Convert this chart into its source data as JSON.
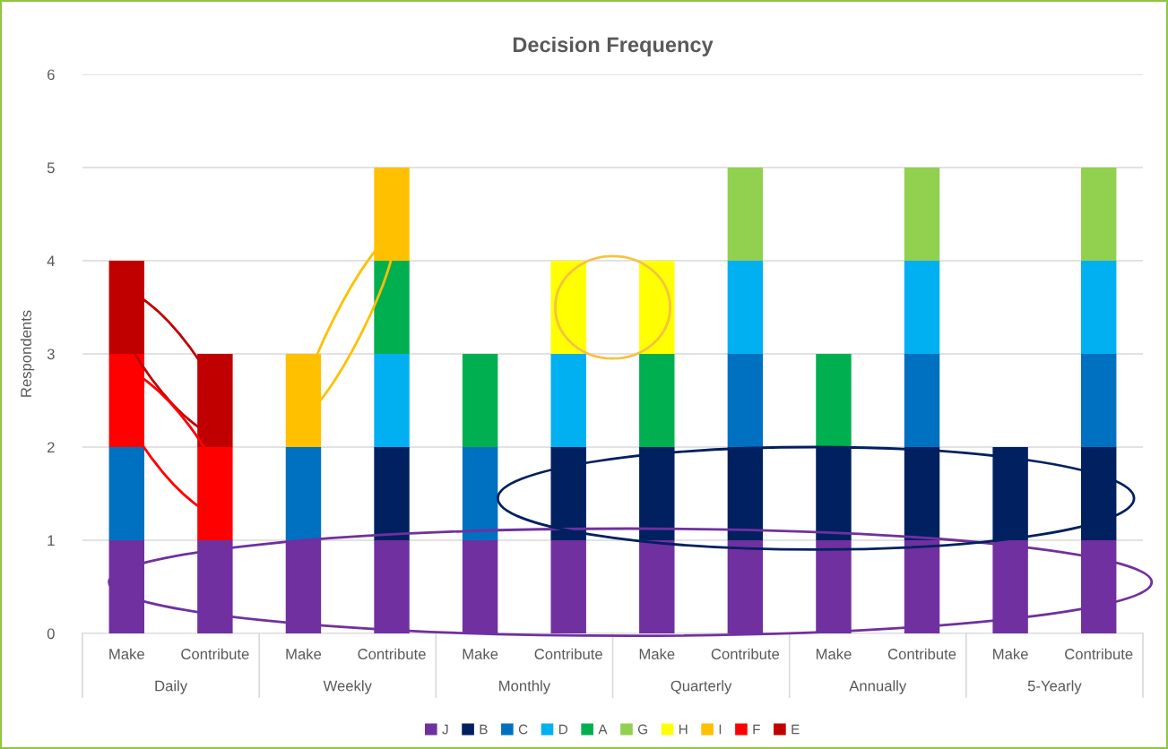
{
  "chart_data": {
    "type": "bar",
    "title": "Decision Frequency",
    "ylabel": "Respondents",
    "stacked": true,
    "categories": [
      "Make",
      "Contribute",
      "Make",
      "Contribute",
      "Make",
      "Contribute",
      "Make",
      "Contribute",
      "Make",
      "Contribute",
      "Make",
      "Contribute"
    ],
    "annotations": [
      "Daily",
      "Weekly",
      "Monthly",
      "Quarterly",
      "Annually",
      "5-Yearly"
    ],
    "series": [
      {
        "name": "J",
        "color": "#7030a0",
        "values": [
          1,
          1,
          1,
          1,
          1,
          1,
          1,
          1,
          1,
          1,
          1,
          1
        ]
      },
      {
        "name": "B",
        "color": "#002060",
        "values": [
          null,
          null,
          null,
          1,
          null,
          1,
          1,
          1,
          1,
          1,
          1,
          1
        ]
      },
      {
        "name": "C",
        "color": "#0070c0",
        "values": [
          1,
          null,
          1,
          null,
          1,
          null,
          null,
          1,
          null,
          1,
          null,
          1
        ]
      },
      {
        "name": "D",
        "color": "#00b0f0",
        "values": [
          null,
          null,
          null,
          1,
          null,
          1,
          null,
          1,
          null,
          1,
          null,
          1
        ]
      },
      {
        "name": "A",
        "color": "#00b050",
        "values": [
          null,
          null,
          null,
          1,
          1,
          null,
          1,
          null,
          1,
          null,
          null,
          null
        ]
      },
      {
        "name": "G",
        "color": "#92d050",
        "values": [
          null,
          null,
          null,
          null,
          null,
          null,
          null,
          1,
          null,
          1,
          null,
          1
        ]
      },
      {
        "name": "H",
        "color": "#ffff00",
        "values": [
          null,
          null,
          null,
          null,
          null,
          1,
          1,
          null,
          null,
          null,
          null,
          null
        ]
      },
      {
        "name": "I",
        "color": "#ffc000",
        "values": [
          null,
          null,
          1,
          1,
          null,
          null,
          null,
          null,
          null,
          null,
          null,
          null
        ]
      },
      {
        "name": "F",
        "color": "#ff0000",
        "values": [
          1,
          1,
          null,
          null,
          null,
          null,
          null,
          null,
          null,
          null,
          null,
          null
        ]
      },
      {
        "name": "E",
        "color": "#c00000",
        "values": [
          1,
          1,
          null,
          null,
          null,
          null,
          null,
          null,
          null,
          null,
          null,
          null
        ]
      }
    ],
    "ylim": [
      0,
      6
    ],
    "yticks": [
      0,
      1,
      2,
      3,
      4,
      5,
      6
    ],
    "grid": "y",
    "legend": "bottom"
  }
}
